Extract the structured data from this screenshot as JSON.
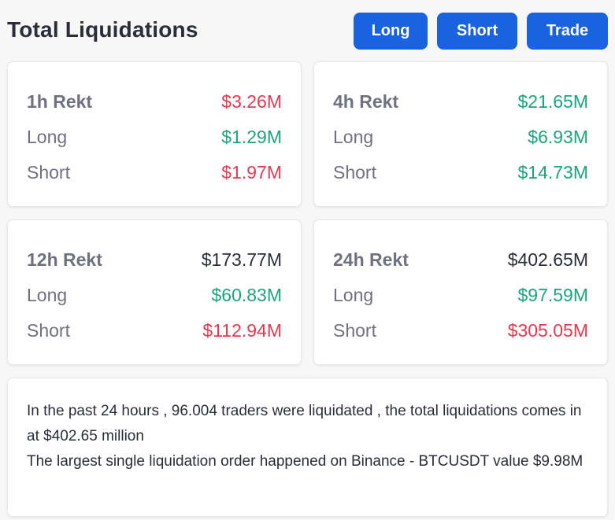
{
  "header": {
    "title": "Total Liquidations",
    "buttons": {
      "long": "Long",
      "short": "Short",
      "trade": "Trade"
    }
  },
  "cards": [
    {
      "label": "1h Rekt",
      "total": "$3.26M",
      "long_label": "Long",
      "long": "$1.29M",
      "short_label": "Short",
      "short": "$1.97M"
    },
    {
      "label": "4h Rekt",
      "total": "$21.65M",
      "long_label": "Long",
      "long": "$6.93M",
      "short_label": "Short",
      "short": "$14.73M"
    },
    {
      "label": "12h Rekt",
      "total": "$173.77M",
      "long_label": "Long",
      "long": "$60.83M",
      "short_label": "Short",
      "short": "$112.94M"
    },
    {
      "label": "24h Rekt",
      "total": "$402.65M",
      "long_label": "Long",
      "long": "$97.59M",
      "short_label": "Short",
      "short": "$305.05M"
    }
  ],
  "summary": {
    "line1": "In the past 24 hours , 96.004 traders were liquidated , the total liquidations comes in at $402.65 million",
    "line2": "The largest single liquidation order happened on Binance - BTCUSDT value $9.98M"
  },
  "colors": {
    "accent": "#1a63e0",
    "red": "#e8384f",
    "green": "#1aa67d",
    "dark": "#2a2e39",
    "muted": "#6f7180"
  }
}
